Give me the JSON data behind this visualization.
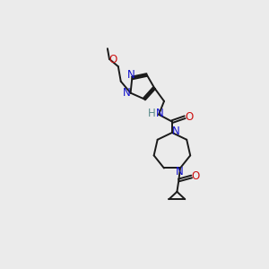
{
  "bg_color": "#ebebeb",
  "bond_color": "#1a1a1a",
  "N_color": "#1010cc",
  "O_color": "#cc1010",
  "H_color": "#5a8a8a",
  "line_width": 1.4,
  "font_size": 8.5,
  "figsize": [
    3.0,
    3.0
  ],
  "dpi": 100,
  "xlim": [
    0,
    10
  ],
  "ylim": [
    0,
    15
  ]
}
